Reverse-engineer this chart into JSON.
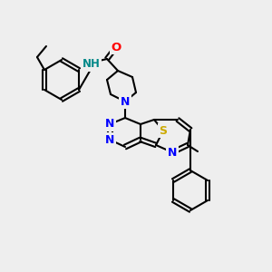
{
  "background_color": "#eeeeee",
  "bond_color": "#000000",
  "atom_colors": {
    "N": "#0000ff",
    "O": "#ff0000",
    "S": "#ccaa00",
    "NH": "#008888",
    "C": "#000000"
  },
  "figsize": [
    3.0,
    3.0
  ],
  "dpi": 100
}
